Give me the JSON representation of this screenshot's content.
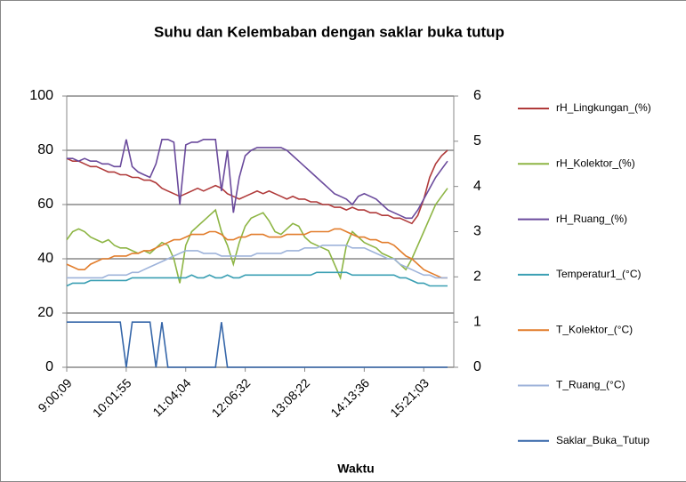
{
  "chart_data": {
    "type": "line",
    "title": "Suhu dan Kelembaban dengan saklar  buka tutup",
    "x_label": "Waktu",
    "categories": [
      "9:00;09",
      null,
      null,
      null,
      null,
      null,
      null,
      null,
      null,
      null,
      "10:01;55",
      null,
      null,
      null,
      null,
      null,
      null,
      null,
      null,
      null,
      "11:04;04",
      null,
      null,
      null,
      null,
      null,
      null,
      null,
      null,
      null,
      "12:06;32",
      null,
      null,
      null,
      null,
      null,
      null,
      null,
      null,
      null,
      "13:08;22",
      null,
      null,
      null,
      null,
      null,
      null,
      null,
      null,
      null,
      "14:13;36",
      null,
      null,
      null,
      null,
      null,
      null,
      null,
      null,
      null,
      "15:21;03",
      null,
      null,
      null,
      null
    ],
    "ylim": [
      0,
      100
    ],
    "yticks": [
      0,
      20,
      40,
      60,
      80,
      100
    ],
    "y2lim": [
      0,
      6
    ],
    "y2ticks": [
      0,
      1,
      2,
      3,
      4,
      5,
      6
    ],
    "grid": true,
    "legend": "right",
    "series": [
      {
        "name": "rH_Lingkungan_(%)",
        "color": "#b03a3a",
        "values": [
          77,
          76,
          76,
          75,
          74,
          74,
          73,
          72,
          72,
          71,
          71,
          70,
          70,
          69,
          69,
          68,
          66,
          65,
          64,
          63,
          64,
          65,
          66,
          65,
          66,
          67,
          66,
          64,
          63,
          62,
          63,
          64,
          65,
          64,
          65,
          64,
          63,
          62,
          63,
          62,
          62,
          61,
          61,
          60,
          60,
          59,
          59,
          58,
          59,
          58,
          58,
          57,
          57,
          56,
          56,
          55,
          55,
          54,
          53,
          56,
          62,
          70,
          75,
          78,
          80
        ]
      },
      {
        "name": "rH_Kolektor_(%)",
        "color": "#8db544",
        "values": [
          47,
          50,
          51,
          50,
          48,
          47,
          46,
          47,
          45,
          44,
          44,
          43,
          42,
          43,
          42,
          44,
          46,
          45,
          40,
          31,
          45,
          50,
          52,
          54,
          56,
          58,
          50,
          45,
          38,
          46,
          52,
          55,
          56,
          57,
          54,
          50,
          49,
          51,
          53,
          52,
          48,
          46,
          45,
          44,
          43,
          38,
          33,
          45,
          50,
          48,
          46,
          45,
          44,
          42,
          41,
          40,
          38,
          36,
          40,
          45,
          50,
          55,
          60,
          63,
          66
        ]
      },
      {
        "name": "rH_Ruang_(%)",
        "color": "#6a4a9c",
        "values": [
          77,
          77,
          76,
          77,
          76,
          76,
          75,
          75,
          74,
          74,
          84,
          74,
          72,
          71,
          70,
          75,
          84,
          84,
          83,
          60,
          82,
          83,
          83,
          84,
          84,
          84,
          65,
          80,
          57,
          70,
          78,
          80,
          81,
          81,
          81,
          81,
          81,
          80,
          78,
          76,
          74,
          72,
          70,
          68,
          66,
          64,
          63,
          62,
          60,
          63,
          64,
          63,
          62,
          60,
          58,
          57,
          56,
          55,
          55,
          58,
          62,
          66,
          70,
          73,
          76
        ]
      },
      {
        "name": "Temperatur1_(°C)",
        "color": "#3a9fb3",
        "values": [
          30,
          31,
          31,
          31,
          32,
          32,
          32,
          32,
          32,
          32,
          32,
          33,
          33,
          33,
          33,
          33,
          33,
          33,
          33,
          33,
          33,
          34,
          33,
          33,
          34,
          33,
          33,
          34,
          33,
          33,
          34,
          34,
          34,
          34,
          34,
          34,
          34,
          34,
          34,
          34,
          34,
          34,
          35,
          35,
          35,
          35,
          35,
          35,
          34,
          34,
          34,
          34,
          34,
          34,
          34,
          34,
          33,
          33,
          32,
          31,
          31,
          30,
          30,
          30,
          30
        ]
      },
      {
        "name": "T_Kolektor_(°C)",
        "color": "#e27d2c",
        "values": [
          38,
          37,
          36,
          36,
          38,
          39,
          40,
          40,
          41,
          41,
          41,
          42,
          42,
          43,
          43,
          44,
          45,
          46,
          47,
          47,
          48,
          49,
          49,
          49,
          50,
          50,
          49,
          47,
          47,
          48,
          48,
          49,
          49,
          49,
          48,
          48,
          48,
          49,
          49,
          49,
          49,
          50,
          50,
          50,
          50,
          51,
          51,
          50,
          49,
          48,
          48,
          47,
          47,
          46,
          46,
          45,
          43,
          41,
          40,
          38,
          36,
          35,
          34,
          33,
          33
        ]
      },
      {
        "name": "T_Ruang_(°C)",
        "color": "#9eb3da",
        "values": [
          33,
          33,
          33,
          33,
          33,
          33,
          33,
          34,
          34,
          34,
          34,
          35,
          35,
          36,
          37,
          38,
          39,
          40,
          41,
          42,
          43,
          43,
          43,
          42,
          42,
          42,
          41,
          41,
          41,
          41,
          41,
          41,
          42,
          42,
          42,
          42,
          42,
          43,
          43,
          43,
          44,
          44,
          44,
          45,
          45,
          45,
          45,
          45,
          44,
          44,
          44,
          43,
          42,
          41,
          40,
          40,
          38,
          37,
          36,
          35,
          34,
          34,
          33,
          33,
          33
        ]
      },
      {
        "name": "Saklar_Buka_Tutup",
        "color": "#3566a9",
        "axis": "y2",
        "values": [
          1,
          1,
          1,
          1,
          1,
          1,
          1,
          1,
          1,
          1,
          0,
          1,
          1,
          1,
          1,
          0,
          1,
          0,
          0,
          0,
          0,
          0,
          0,
          0,
          0,
          0,
          1,
          0,
          0,
          0,
          0,
          0,
          0,
          0,
          0,
          0,
          0,
          0,
          0,
          0,
          0,
          0,
          0,
          0,
          0,
          0,
          0,
          0,
          0,
          0,
          0,
          0,
          0,
          0,
          0,
          0,
          0,
          0,
          0,
          0,
          0,
          0,
          0,
          0,
          0
        ]
      }
    ]
  }
}
